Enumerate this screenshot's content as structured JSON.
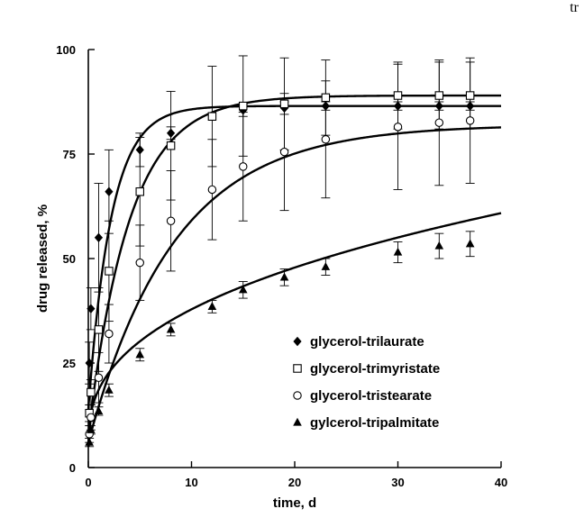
{
  "corner_text": "tr",
  "chart_data": {
    "type": "scatter",
    "title": "",
    "xlabel": "time, d",
    "ylabel": "drug released, %",
    "xlim": [
      0,
      40
    ],
    "ylim": [
      0,
      100
    ],
    "xticks": [
      0,
      10,
      20,
      30,
      40
    ],
    "yticks": [
      0,
      25,
      50,
      75,
      100
    ],
    "grid": false,
    "legend_position": "lower-right",
    "series": [
      {
        "name": "glycerol-trilaurate",
        "marker": "diamond-filled",
        "color": "#000000",
        "points": [
          {
            "x": 0.1,
            "y": 25,
            "err": 5
          },
          {
            "x": 0.25,
            "y": 38,
            "err": 5
          },
          {
            "x": 1,
            "y": 55,
            "err": 13
          },
          {
            "x": 2,
            "y": 66,
            "err": 10
          },
          {
            "x": 5,
            "y": 76,
            "err": 4
          },
          {
            "x": 8,
            "y": 80,
            "err": 1.5
          },
          {
            "x": 15,
            "y": 85.5,
            "err": 1.5
          },
          {
            "x": 19,
            "y": 86,
            "err": 1.5
          },
          {
            "x": 23,
            "y": 86.5,
            "err": 1
          },
          {
            "x": 30,
            "y": 86.5,
            "err": 1
          },
          {
            "x": 34,
            "y": 86.5,
            "err": 1
          },
          {
            "x": 37,
            "y": 86.5,
            "err": 1
          }
        ],
        "fit": {
          "model": "plateau",
          "Y": 86.5,
          "k": 0.45,
          "y0": 14
        }
      },
      {
        "name": "glycerol-trimyristate",
        "marker": "square-open",
        "color": "#000000",
        "points": [
          {
            "x": 0.1,
            "y": 13,
            "err": 2
          },
          {
            "x": 0.25,
            "y": 18,
            "err": 3
          },
          {
            "x": 1,
            "y": 33,
            "err": 10
          },
          {
            "x": 2,
            "y": 47,
            "err": 12
          },
          {
            "x": 5,
            "y": 66,
            "err": 13
          },
          {
            "x": 8,
            "y": 77,
            "err": 13
          },
          {
            "x": 12,
            "y": 84,
            "err": 12
          },
          {
            "x": 15,
            "y": 86.5,
            "err": 12
          },
          {
            "x": 19,
            "y": 87,
            "err": 11
          },
          {
            "x": 23,
            "y": 88.5,
            "err": 9
          },
          {
            "x": 30,
            "y": 89,
            "err": 8
          },
          {
            "x": 34,
            "y": 89,
            "err": 8
          },
          {
            "x": 37,
            "y": 89,
            "err": 8
          }
        ],
        "fit": {
          "model": "plateau",
          "Y": 89,
          "k": 0.25,
          "y0": 8
        }
      },
      {
        "name": "glycerol-tristearate",
        "marker": "circle-open",
        "color": "#000000",
        "points": [
          {
            "x": 0.1,
            "y": 8,
            "err": 2
          },
          {
            "x": 0.25,
            "y": 12,
            "err": 3
          },
          {
            "x": 1,
            "y": 21.5,
            "err": 6
          },
          {
            "x": 2,
            "y": 32,
            "err": 7
          },
          {
            "x": 5,
            "y": 49,
            "err": 9
          },
          {
            "x": 8,
            "y": 59,
            "err": 12
          },
          {
            "x": 12,
            "y": 66.5,
            "err": 12
          },
          {
            "x": 15,
            "y": 72,
            "err": 13
          },
          {
            "x": 19,
            "y": 75.5,
            "err": 14
          },
          {
            "x": 23,
            "y": 78.5,
            "err": 14
          },
          {
            "x": 30,
            "y": 81.5,
            "err": 15
          },
          {
            "x": 34,
            "y": 82.5,
            "err": 15
          },
          {
            "x": 37,
            "y": 83,
            "err": 15
          }
        ],
        "fit": {
          "model": "plateau",
          "Y": 82,
          "k": 0.12,
          "y0": 6
        }
      },
      {
        "name": "gylcerol-tripalmitate",
        "marker": "triangle-filled",
        "color": "#000000",
        "points": [
          {
            "x": 0.1,
            "y": 6,
            "err": 1
          },
          {
            "x": 0.25,
            "y": 9,
            "err": 1
          },
          {
            "x": 1,
            "y": 13.5,
            "err": 1
          },
          {
            "x": 2,
            "y": 18.5,
            "err": 1.5
          },
          {
            "x": 5,
            "y": 27,
            "err": 1.5
          },
          {
            "x": 8,
            "y": 33,
            "err": 1.5
          },
          {
            "x": 12,
            "y": 38.5,
            "err": 1.5
          },
          {
            "x": 15,
            "y": 42.5,
            "err": 2
          },
          {
            "x": 19,
            "y": 45.5,
            "err": 2
          },
          {
            "x": 23,
            "y": 48,
            "err": 2
          },
          {
            "x": 30,
            "y": 51.5,
            "err": 2.5
          },
          {
            "x": 34,
            "y": 53,
            "err": 3
          },
          {
            "x": 37,
            "y": 53.5,
            "err": 3
          }
        ],
        "fit": {
          "model": "power",
          "a": 13.6,
          "b": 0.383,
          "y0": 5
        }
      }
    ]
  }
}
